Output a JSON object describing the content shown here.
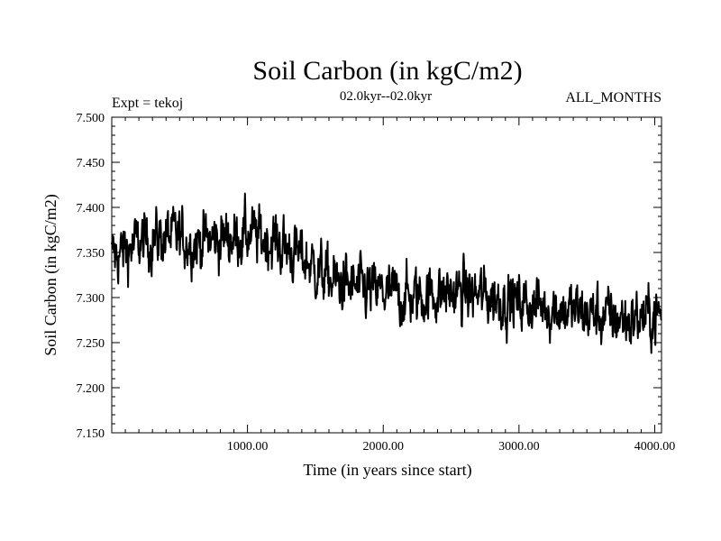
{
  "chart_data": {
    "type": "line",
    "title": "Soil Carbon (in kgC/m2)",
    "subtitle": "02.0kyr--02.0kyr",
    "annotation_left": "Expt = tekoj",
    "annotation_right": "ALL_MONTHS",
    "xlabel": "Time (in years since start)",
    "ylabel": "Soil Carbon (in kgC/m2)",
    "xlim": [
      0,
      4050
    ],
    "ylim": [
      7.15,
      7.5
    ],
    "x_ticks": [
      1000,
      2000,
      3000,
      4000
    ],
    "x_tick_labels": [
      "1000.00",
      "2000.00",
      "3000.00",
      "4000.00"
    ],
    "y_ticks": [
      7.15,
      7.2,
      7.25,
      7.3,
      7.35,
      7.4,
      7.45,
      7.5
    ],
    "y_tick_labels": [
      "7.150",
      "7.200",
      "7.250",
      "7.300",
      "7.350",
      "7.400",
      "7.450",
      "7.500"
    ],
    "grid": false,
    "line_color": "#000000",
    "series": [
      {
        "x_start": 0,
        "x_step": 200,
        "values": [
          7.345,
          7.36,
          7.368,
          7.362,
          7.365,
          7.37,
          7.362,
          7.345,
          7.32,
          7.31,
          7.305,
          7.3,
          7.305,
          7.305,
          7.3,
          7.295,
          7.29,
          7.285,
          7.28,
          7.275,
          7.28
        ]
      }
    ]
  }
}
